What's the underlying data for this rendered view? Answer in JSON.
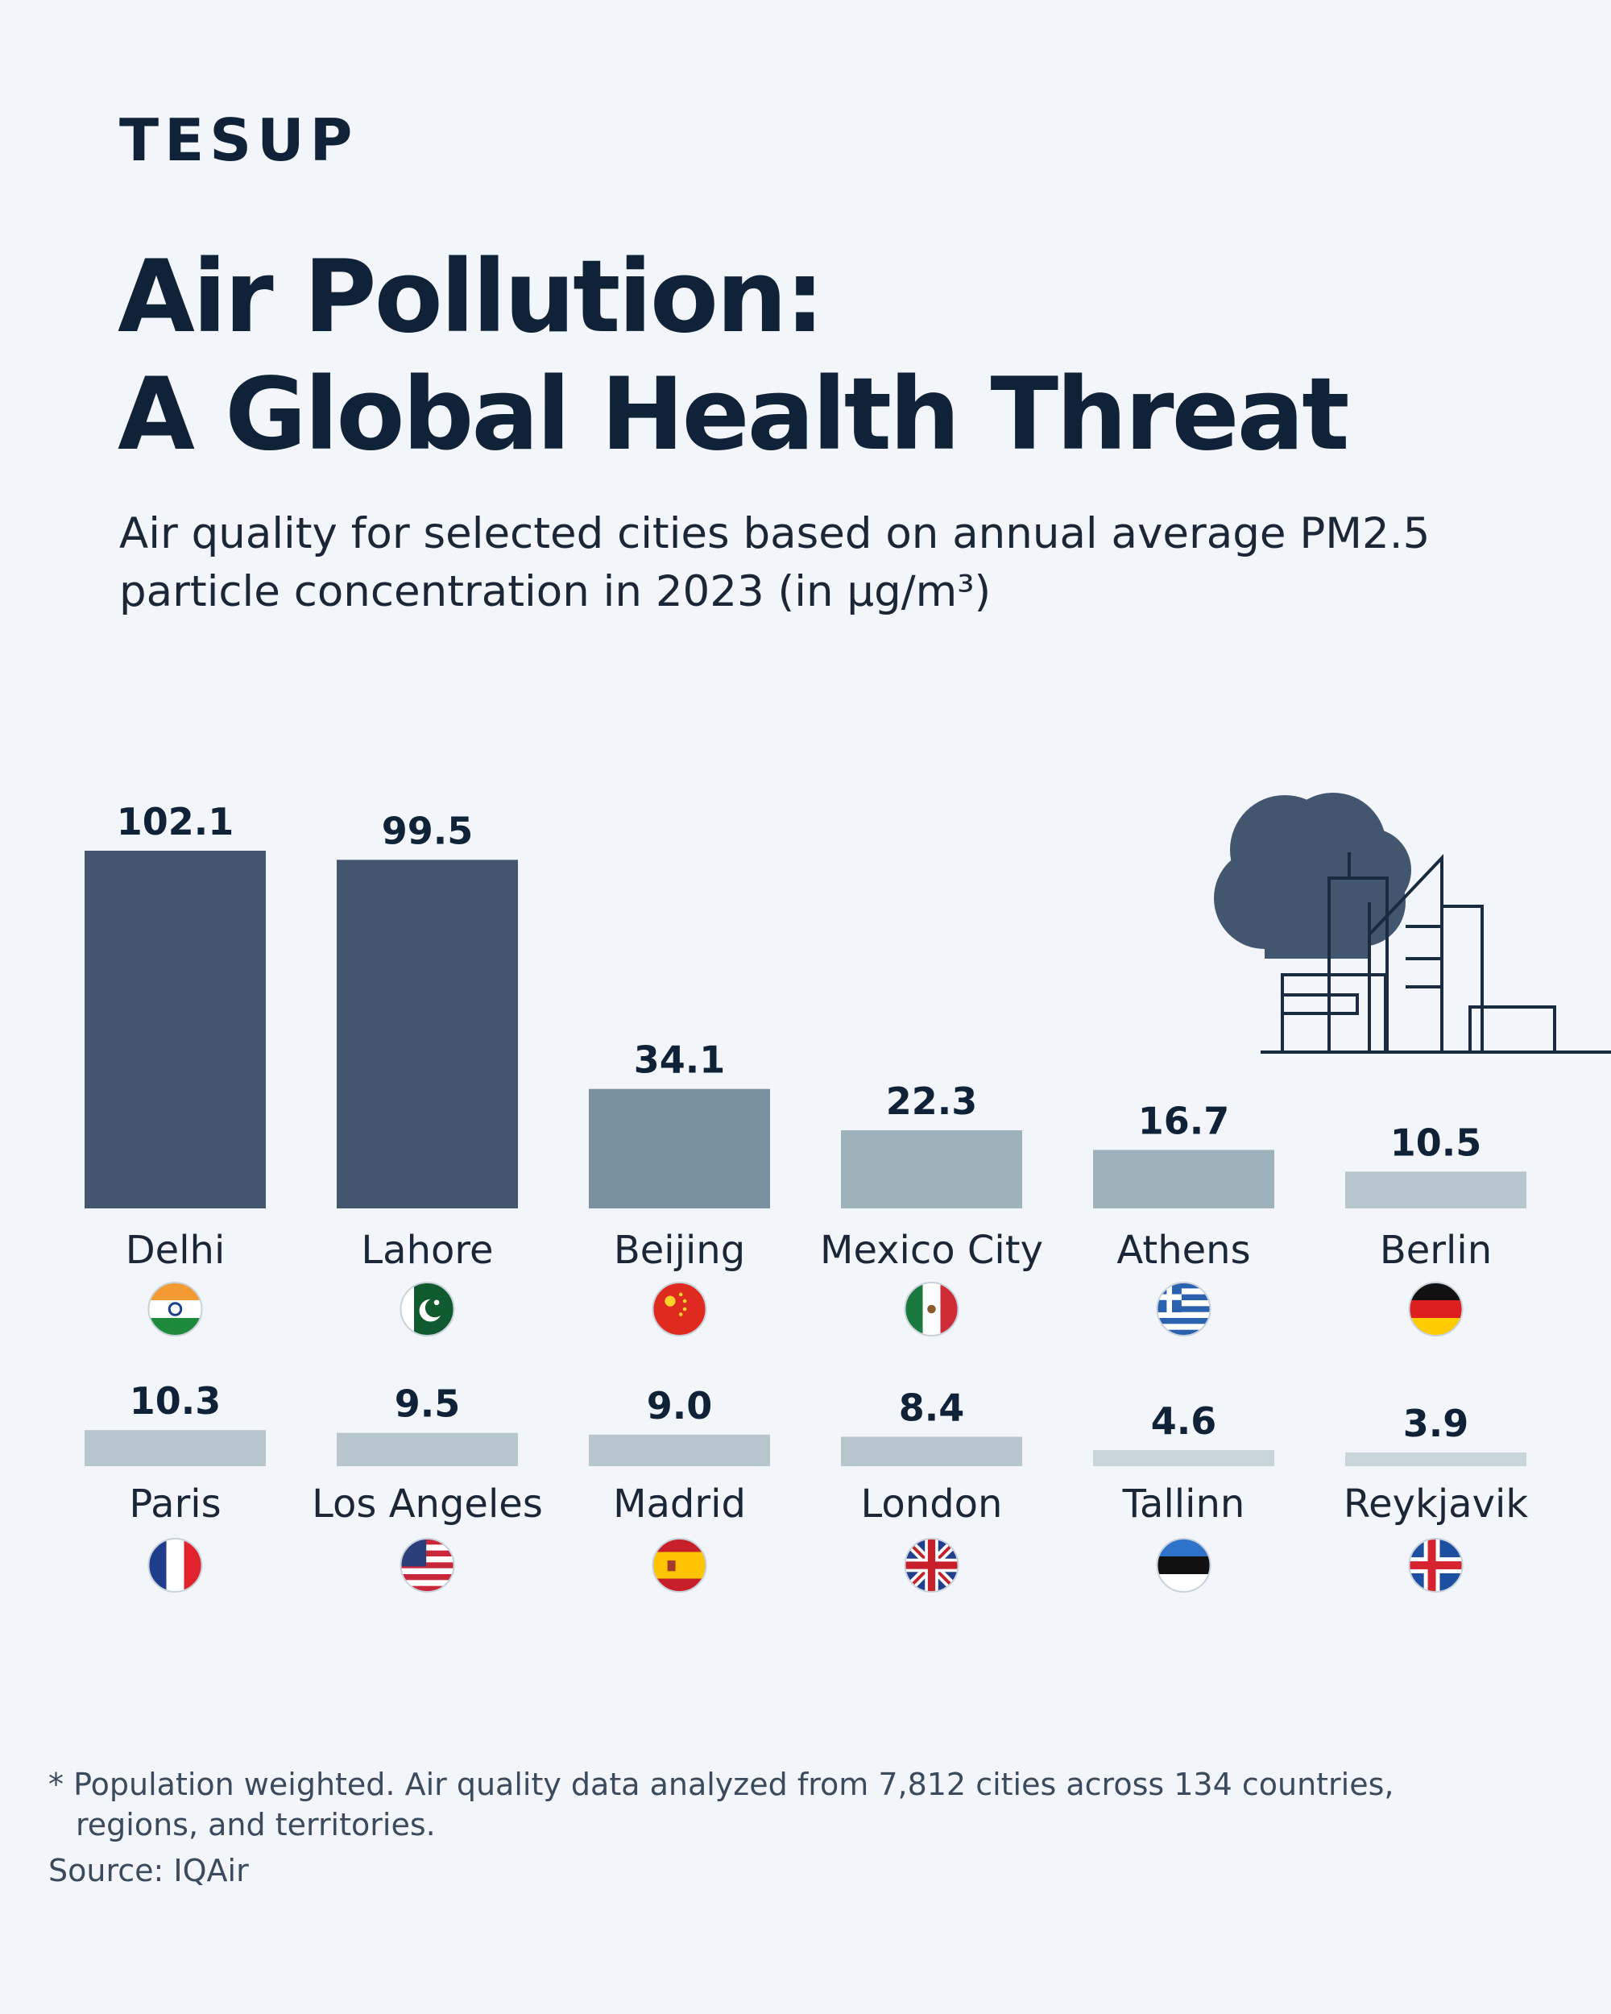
{
  "brand": {
    "logo": "TESUP"
  },
  "header": {
    "title_line1": "Air Pollution:",
    "title_line2": "A Global Health Threat",
    "subtitle_line1": "Air quality for selected cities based on annual average PM2.5",
    "subtitle_line2": "particle concentration in 2023 (in µg/m³)"
  },
  "chart_data": {
    "type": "bar",
    "title": "Air Pollution: A Global Health Threat",
    "subtitle": "Air quality for selected cities based on annual average PM2.5 particle concentration in 2023 (in µg/m³)",
    "categories": [
      "Delhi",
      "Lahore",
      "Beijing",
      "Mexico City",
      "Athens",
      "Berlin",
      "Paris",
      "Los Angeles",
      "Madrid",
      "London",
      "Tallinn",
      "Reykjavik"
    ],
    "values": [
      102.1,
      99.5,
      34.1,
      22.3,
      16.7,
      10.5,
      10.3,
      9.5,
      9.0,
      8.4,
      4.6,
      3.9
    ],
    "value_labels": [
      "102.1",
      "99.5",
      "34.1",
      "22.3",
      "16.7",
      "10.5",
      "10.3",
      "9.5",
      "9.0",
      "8.4",
      "4.6",
      "3.9"
    ],
    "flags": [
      "india-flag",
      "pakistan-flag",
      "china-flag",
      "mexico-flag",
      "greece-flag",
      "germany-flag",
      "france-flag",
      "usa-flag",
      "spain-flag",
      "uk-flag",
      "estonia-flag",
      "iceland-flag"
    ],
    "layout": "two rows of six bars",
    "ylim": [
      0,
      102.1
    ],
    "grid": false,
    "legend": "none",
    "colors": {
      "very_high": "#43566f",
      "high": "#7a929f",
      "moderate": "#9fb2bb",
      "low": "#b8c7ce",
      "very_low": "#c8d5db"
    }
  },
  "decoration": {
    "illustration": "cloud-and-city-skyline-icon"
  },
  "footer": {
    "note_line1": "* Population weighted. Air quality data analyzed from 7,812 cities across 134 countries,",
    "note_line2": "regions, and territories.",
    "source": "Source: IQAir"
  }
}
